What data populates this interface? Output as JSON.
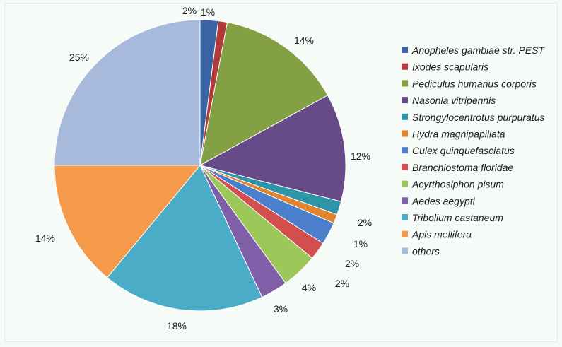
{
  "chart_data": {
    "type": "pie",
    "title": "",
    "legend_position": "right",
    "slices": [
      {
        "label": "Anopheles gambiae str. PEST",
        "value": 2,
        "value_label": "2%",
        "color": "#3a64a6"
      },
      {
        "label": "Ixodes scapularis",
        "value": 1,
        "value_label": "1%",
        "color": "#b23a3a"
      },
      {
        "label": "Pediculus humanus corporis",
        "value": 14,
        "value_label": "14%",
        "color": "#83a044"
      },
      {
        "label": "Nasonia vitripennis",
        "value": 12,
        "value_label": "12%",
        "color": "#674a88"
      },
      {
        "label": "Strongylocentrotus purpuratus",
        "value": 1.5,
        "value_label": "2%",
        "color": "#2e95a8"
      },
      {
        "label": "Hydra magnipapillata",
        "value": 1,
        "value_label": "1%",
        "color": "#e0842f"
      },
      {
        "label": "Culex quinquefasciatus",
        "value": 2.5,
        "value_label": "2%",
        "color": "#4a7fcb"
      },
      {
        "label": "Branchiostoma floridae",
        "value": 2,
        "value_label": "2%",
        "color": "#d34f4f"
      },
      {
        "label": "Acyrthosiphon pisum",
        "value": 4,
        "value_label": "4%",
        "color": "#9cc85a"
      },
      {
        "label": "Aedes aegypti",
        "value": 3,
        "value_label": "3%",
        "color": "#7e5fa8"
      },
      {
        "label": "Tribolium castaneum",
        "value": 18,
        "value_label": "18%",
        "color": "#4aacc6"
      },
      {
        "label": "Apis mellifera",
        "value": 14,
        "value_label": "14%",
        "color": "#f59a4a"
      },
      {
        "label": "others",
        "value": 25,
        "value_label": "25%",
        "color": "#a8badb"
      }
    ]
  }
}
